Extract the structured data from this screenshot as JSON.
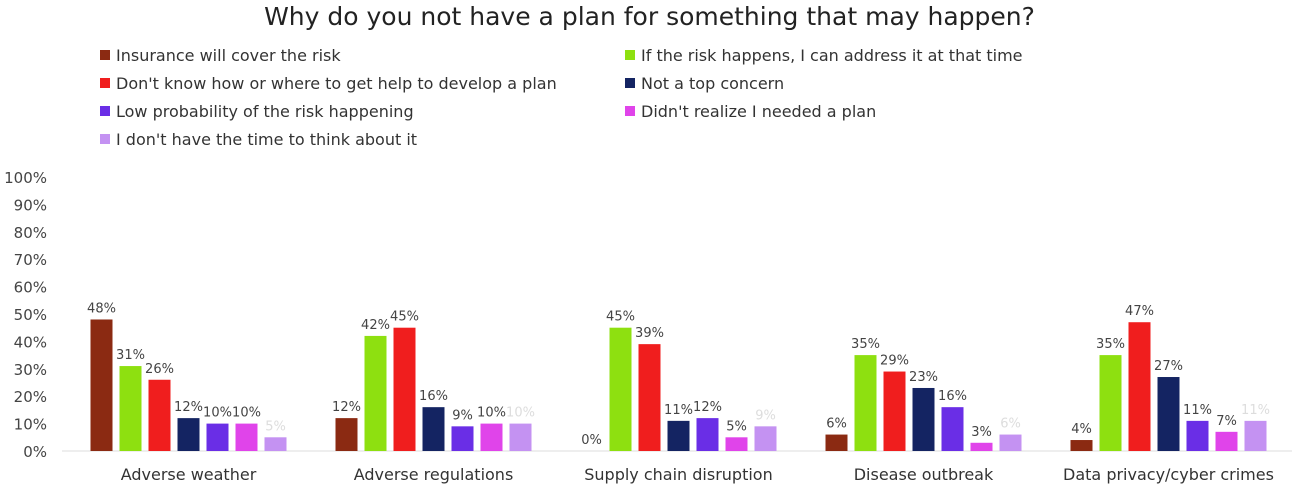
{
  "chart_data": {
    "type": "bar",
    "title": "Why do you not have a plan for something that may happen?",
    "categories": [
      "Adverse weather",
      "Adverse regulations",
      "Supply chain disruption",
      "Disease outbreak",
      "Data privacy/cyber crimes"
    ],
    "series": [
      {
        "name": "Insurance will cover the risk",
        "color": "#8b2a12",
        "values": [
          48,
          12,
          0,
          6,
          4
        ]
      },
      {
        "name": "If the risk happens, I can address it at that time",
        "color": "#8ee010",
        "values": [
          31,
          42,
          45,
          35,
          35
        ]
      },
      {
        "name": "Don't know how or where to get help to develop a plan",
        "color": "#f01e1e",
        "values": [
          26,
          45,
          39,
          29,
          47
        ]
      },
      {
        "name": "Not a top concern",
        "color": "#142462",
        "values": [
          12,
          16,
          11,
          23,
          27
        ]
      },
      {
        "name": "Low probability of the risk happening",
        "color": "#6a2ee6",
        "values": [
          10,
          9,
          12,
          16,
          11
        ]
      },
      {
        "name": "Didn't realize I needed a plan",
        "color": "#e044ea",
        "values": [
          10,
          10,
          5,
          3,
          7
        ]
      },
      {
        "name": "I don't have the time to think about it",
        "color": "#c492f2",
        "values": [
          5,
          10,
          9,
          6,
          11
        ]
      }
    ],
    "yticks": [
      "0%",
      "10%",
      "20%",
      "30%",
      "40%",
      "50%",
      "60%",
      "70%",
      "80%",
      "90%",
      "100%"
    ],
    "ylim": [
      0,
      100
    ],
    "xlabel": "",
    "ylabel": "",
    "grid": false,
    "legend_position": "top"
  }
}
